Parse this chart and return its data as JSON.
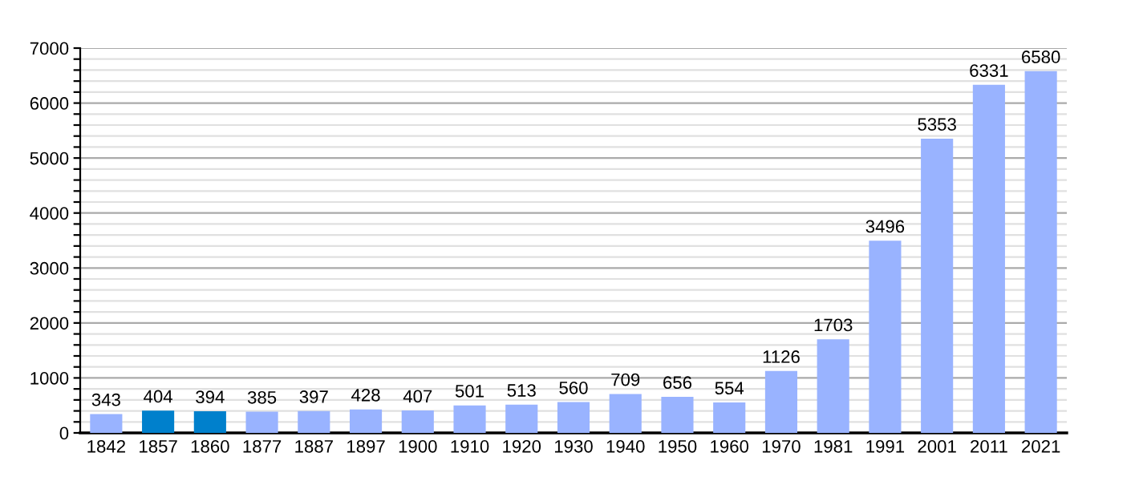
{
  "chart_data": {
    "type": "bar",
    "categories": [
      "1842",
      "1857",
      "1860",
      "1877",
      "1887",
      "1897",
      "1900",
      "1910",
      "1920",
      "1930",
      "1940",
      "1950",
      "1960",
      "1970",
      "1981",
      "1991",
      "2001",
      "2011",
      "2021"
    ],
    "values": [
      343,
      404,
      394,
      385,
      397,
      428,
      407,
      501,
      513,
      560,
      709,
      656,
      554,
      1126,
      1703,
      3496,
      5353,
      6331,
      6580
    ],
    "colors": [
      "#99b3ff",
      "#0080cc",
      "#0080cc",
      "#99b3ff",
      "#99b3ff",
      "#99b3ff",
      "#99b3ff",
      "#99b3ff",
      "#99b3ff",
      "#99b3ff",
      "#99b3ff",
      "#99b3ff",
      "#99b3ff",
      "#99b3ff",
      "#99b3ff",
      "#99b3ff",
      "#99b3ff",
      "#99b3ff",
      "#99b3ff"
    ],
    "ylim": [
      0,
      7000
    ],
    "yticks": [
      0,
      {
        "value": 200,
        "label": null
      },
      {
        "value": 400,
        "label": null
      },
      {
        "value": 600,
        "label": null
      },
      {
        "value": 800,
        "label": null
      },
      1000,
      {
        "value": 1200,
        "label": null
      },
      {
        "value": 1400,
        "label": null
      },
      {
        "value": 1600,
        "label": null
      },
      {
        "value": 1800,
        "label": null
      },
      2000,
      {
        "value": 2200,
        "label": null
      },
      {
        "value": 2400,
        "label": null
      },
      {
        "value": 2600,
        "label": null
      },
      {
        "value": 2800,
        "label": null
      },
      3000,
      {
        "value": 3200,
        "label": null
      },
      {
        "value": 3400,
        "label": null
      },
      {
        "value": 3600,
        "label": null
      },
      {
        "value": 3800,
        "label": null
      },
      4000,
      {
        "value": 4200,
        "label": null
      },
      {
        "value": 4400,
        "label": null
      },
      {
        "value": 4600,
        "label": null
      },
      {
        "value": 4800,
        "label": null
      },
      5000,
      {
        "value": 5200,
        "label": null
      },
      {
        "value": 5400,
        "label": null
      },
      {
        "value": 5600,
        "label": null
      },
      {
        "value": 5800,
        "label": null
      },
      6000,
      {
        "value": 6200,
        "label": null
      },
      {
        "value": 6400,
        "label": null
      },
      {
        "value": 6600,
        "label": null
      },
      {
        "value": 6800,
        "label": null
      },
      7000
    ],
    "grid": "y",
    "data_labels": true,
    "legend": false
  }
}
